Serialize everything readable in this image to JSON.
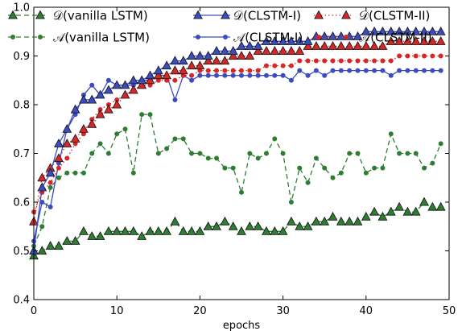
{
  "chart_data": {
    "type": "line",
    "xlabel": "epochs",
    "ylabel": "",
    "xlim": [
      0,
      50
    ],
    "ylim": [
      0.4,
      1.0
    ],
    "xticks": [
      0,
      10,
      20,
      30,
      40,
      50
    ],
    "yticks": [
      0.4,
      0.5,
      0.6,
      0.7,
      0.8,
      0.9,
      1.0
    ],
    "grid": false,
    "legend_placement": "top",
    "series": [
      {
        "name": "𝒟(vanilla LSTM)",
        "color": "#2e7d32",
        "line": "dashed",
        "marker": "triangle",
        "values": [
          0.49,
          0.5,
          0.51,
          0.51,
          0.52,
          0.52,
          0.54,
          0.53,
          0.53,
          0.54,
          0.54,
          0.54,
          0.54,
          0.53,
          0.54,
          0.54,
          0.54,
          0.56,
          0.54,
          0.54,
          0.54,
          0.55,
          0.55,
          0.56,
          0.55,
          0.54,
          0.55,
          0.55,
          0.54,
          0.54,
          0.54,
          0.56,
          0.55,
          0.55,
          0.56,
          0.56,
          0.57,
          0.56,
          0.56,
          0.56,
          0.57,
          0.58,
          0.57,
          0.58,
          0.59,
          0.58,
          0.58,
          0.6,
          0.59,
          0.59
        ]
      },
      {
        "name": "𝒜(vanilla LSTM)",
        "color": "#2e7d32",
        "line": "dashed",
        "marker": "dot",
        "values": [
          0.51,
          0.55,
          0.63,
          0.65,
          0.66,
          0.66,
          0.66,
          0.7,
          0.72,
          0.7,
          0.74,
          0.75,
          0.66,
          0.78,
          0.78,
          0.7,
          0.71,
          0.73,
          0.73,
          0.7,
          0.7,
          0.69,
          0.69,
          0.67,
          0.67,
          0.62,
          0.7,
          0.69,
          0.7,
          0.73,
          0.7,
          0.6,
          0.67,
          0.64,
          0.69,
          0.67,
          0.65,
          0.66,
          0.7,
          0.7,
          0.66,
          0.67,
          0.67,
          0.74,
          0.7,
          0.7,
          0.7,
          0.67,
          0.68,
          0.72
        ]
      },
      {
        "name": "𝒟(CLSTM-I)",
        "color": "#3b4cc0",
        "line": "solid",
        "marker": "triangle",
        "values": [
          0.5,
          0.63,
          0.66,
          0.72,
          0.75,
          0.79,
          0.81,
          0.81,
          0.82,
          0.83,
          0.84,
          0.84,
          0.85,
          0.85,
          0.86,
          0.87,
          0.88,
          0.89,
          0.89,
          0.9,
          0.9,
          0.9,
          0.91,
          0.91,
          0.91,
          0.92,
          0.92,
          0.92,
          0.93,
          0.93,
          0.93,
          0.93,
          0.93,
          0.93,
          0.94,
          0.94,
          0.94,
          0.94,
          0.94,
          0.94,
          0.95,
          0.95,
          0.95,
          0.95,
          0.95,
          0.95,
          0.95,
          0.95,
          0.95,
          0.95
        ]
      },
      {
        "name": "𝒜(CLSTM-I)",
        "color": "#3b4cc0",
        "line": "solid",
        "marker": "dot",
        "values": [
          0.52,
          0.6,
          0.59,
          0.68,
          0.75,
          0.78,
          0.82,
          0.84,
          0.82,
          0.85,
          0.84,
          0.84,
          0.84,
          0.85,
          0.85,
          0.86,
          0.86,
          0.81,
          0.86,
          0.85,
          0.86,
          0.86,
          0.86,
          0.86,
          0.86,
          0.86,
          0.86,
          0.86,
          0.86,
          0.86,
          0.86,
          0.85,
          0.87,
          0.86,
          0.87,
          0.86,
          0.87,
          0.87,
          0.87,
          0.87,
          0.87,
          0.87,
          0.87,
          0.86,
          0.87,
          0.87,
          0.87,
          0.87,
          0.87,
          0.87
        ]
      },
      {
        "name": "𝒟(CLSTM-II)",
        "color": "#d62728",
        "line": "dotted",
        "marker": "triangle",
        "values": [
          0.56,
          0.65,
          0.67,
          0.69,
          0.72,
          0.73,
          0.75,
          0.76,
          0.78,
          0.79,
          0.8,
          0.82,
          0.83,
          0.84,
          0.85,
          0.86,
          0.86,
          0.87,
          0.87,
          0.88,
          0.88,
          0.89,
          0.89,
          0.89,
          0.9,
          0.9,
          0.9,
          0.91,
          0.91,
          0.91,
          0.91,
          0.91,
          0.91,
          0.92,
          0.92,
          0.92,
          0.92,
          0.92,
          0.92,
          0.92,
          0.92,
          0.92,
          0.92,
          0.93,
          0.93,
          0.93,
          0.93,
          0.93,
          0.93,
          0.93
        ]
      },
      {
        "name": "𝒜(CLSTM-II)",
        "color": "#d62728",
        "line": "dotted",
        "marker": "dot",
        "values": [
          0.58,
          0.62,
          0.64,
          0.67,
          0.69,
          0.72,
          0.74,
          0.77,
          0.79,
          0.8,
          0.81,
          0.82,
          0.83,
          0.84,
          0.84,
          0.85,
          0.85,
          0.85,
          0.86,
          0.86,
          0.87,
          0.87,
          0.87,
          0.87,
          0.87,
          0.87,
          0.87,
          0.87,
          0.88,
          0.88,
          0.88,
          0.88,
          0.89,
          0.89,
          0.89,
          0.89,
          0.89,
          0.89,
          0.89,
          0.89,
          0.89,
          0.89,
          0.89,
          0.89,
          0.9,
          0.9,
          0.9,
          0.9,
          0.9,
          0.9
        ]
      }
    ]
  }
}
